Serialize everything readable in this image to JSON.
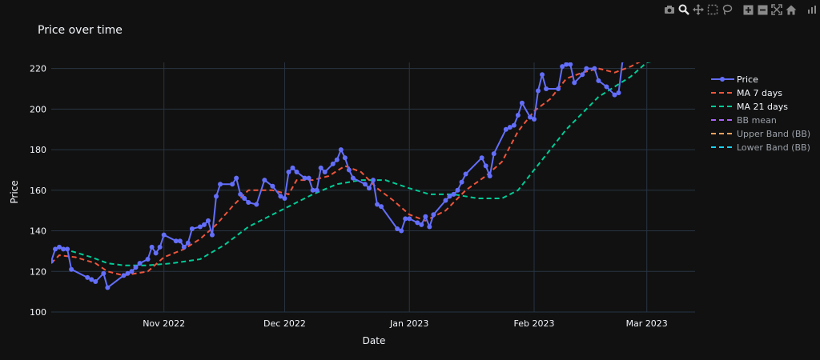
{
  "chart_data": {
    "type": "line",
    "title": "Price over time",
    "xlabel": "Date",
    "ylabel": "Price",
    "x_range": [
      "2022-10-04",
      "2023-03-13"
    ],
    "ylim": [
      100,
      223
    ],
    "x_ticks": [
      {
        "date": "2022-11-01",
        "label": "Nov 2022"
      },
      {
        "date": "2022-12-01",
        "label": "Dec 2022"
      },
      {
        "date": "2023-01-01",
        "label": "Jan 2023"
      },
      {
        "date": "2023-02-01",
        "label": "Feb 2023"
      },
      {
        "date": "2023-03-01",
        "label": "Mar 2023"
      }
    ],
    "y_ticks": [
      100,
      120,
      140,
      160,
      180,
      200,
      220
    ],
    "grid": true,
    "legend_position": "right",
    "background": "#111111",
    "series": [
      {
        "name": "Price",
        "color": "#636efa",
        "mode": "lines+markers",
        "dash": "solid",
        "points": [
          [
            "2022-10-04",
            125
          ],
          [
            "2022-10-05",
            131
          ],
          [
            "2022-10-06",
            132
          ],
          [
            "2022-10-07",
            131
          ],
          [
            "2022-10-08",
            131
          ],
          [
            "2022-10-09",
            121
          ],
          [
            "2022-10-13",
            117
          ],
          [
            "2022-10-14",
            116
          ],
          [
            "2022-10-15",
            115
          ],
          [
            "2022-10-17",
            119
          ],
          [
            "2022-10-18",
            112
          ],
          [
            "2022-10-22",
            118
          ],
          [
            "2022-10-23",
            119
          ],
          [
            "2022-10-24",
            120
          ],
          [
            "2022-10-25",
            122
          ],
          [
            "2022-10-26",
            124
          ],
          [
            "2022-10-28",
            126
          ],
          [
            "2022-10-29",
            132
          ],
          [
            "2022-10-30",
            129
          ],
          [
            "2022-10-31",
            132
          ],
          [
            "2022-11-01",
            138
          ],
          [
            "2022-11-04",
            135
          ],
          [
            "2022-11-05",
            135
          ],
          [
            "2022-11-06",
            132
          ],
          [
            "2022-11-07",
            134
          ],
          [
            "2022-11-08",
            141
          ],
          [
            "2022-11-10",
            142
          ],
          [
            "2022-11-11",
            143
          ],
          [
            "2022-11-12",
            145
          ],
          [
            "2022-11-13",
            138
          ],
          [
            "2022-11-14",
            157
          ],
          [
            "2022-11-15",
            163
          ],
          [
            "2022-11-18",
            163
          ],
          [
            "2022-11-19",
            166
          ],
          [
            "2022-11-20",
            158
          ],
          [
            "2022-11-21",
            156
          ],
          [
            "2022-11-22",
            154
          ],
          [
            "2022-11-24",
            153
          ],
          [
            "2022-11-26",
            165
          ],
          [
            "2022-11-28",
            162
          ],
          [
            "2022-11-30",
            157
          ],
          [
            "2022-12-01",
            156
          ],
          [
            "2022-12-02",
            169
          ],
          [
            "2022-12-03",
            171
          ],
          [
            "2022-12-04",
            169
          ],
          [
            "2022-12-06",
            166
          ],
          [
            "2022-12-07",
            166
          ],
          [
            "2022-12-08",
            160
          ],
          [
            "2022-12-09",
            160
          ],
          [
            "2022-12-10",
            171
          ],
          [
            "2022-12-11",
            169
          ],
          [
            "2022-12-13",
            173
          ],
          [
            "2022-12-14",
            175
          ],
          [
            "2022-12-15",
            180
          ],
          [
            "2022-12-16",
            176
          ],
          [
            "2022-12-17",
            170
          ],
          [
            "2022-12-18",
            166
          ],
          [
            "2022-12-21",
            163
          ],
          [
            "2022-12-22",
            161
          ],
          [
            "2022-12-23",
            165
          ],
          [
            "2022-12-24",
            153
          ],
          [
            "2022-12-25",
            152
          ],
          [
            "2022-12-29",
            141
          ],
          [
            "2022-12-30",
            140
          ],
          [
            "2022-12-31",
            146
          ],
          [
            "2023-01-01",
            146
          ],
          [
            "2023-01-03",
            144
          ],
          [
            "2023-01-04",
            143
          ],
          [
            "2023-01-05",
            147
          ],
          [
            "2023-01-06",
            142
          ],
          [
            "2023-01-07",
            148
          ],
          [
            "2023-01-10",
            155
          ],
          [
            "2023-01-11",
            157
          ],
          [
            "2023-01-12",
            158
          ],
          [
            "2023-01-13",
            160
          ],
          [
            "2023-01-14",
            164
          ],
          [
            "2023-01-15",
            168
          ],
          [
            "2023-01-19",
            176
          ],
          [
            "2023-01-20",
            172
          ],
          [
            "2023-01-21",
            167
          ],
          [
            "2023-01-22",
            178
          ],
          [
            "2023-01-25",
            190
          ],
          [
            "2023-01-26",
            191
          ],
          [
            "2023-01-27",
            192
          ],
          [
            "2023-01-28",
            197
          ],
          [
            "2023-01-29",
            203
          ],
          [
            "2023-01-31",
            196
          ],
          [
            "2023-02-01",
            195
          ],
          [
            "2023-02-02",
            209
          ],
          [
            "2023-02-03",
            217
          ],
          [
            "2023-02-04",
            210
          ],
          [
            "2023-02-07",
            210
          ],
          [
            "2023-02-08",
            221
          ],
          [
            "2023-02-09",
            222
          ],
          [
            "2023-02-10",
            222
          ],
          [
            "2023-02-11",
            213
          ],
          [
            "2023-02-13",
            217
          ],
          [
            "2023-02-14",
            220
          ],
          [
            "2023-02-16",
            220
          ],
          [
            "2023-02-17",
            214
          ],
          [
            "2023-02-19",
            211
          ],
          [
            "2023-02-21",
            207
          ],
          [
            "2023-02-22",
            208
          ],
          [
            "2023-02-23",
            224
          ]
        ]
      },
      {
        "name": "MA 7 days",
        "color": "#ef553b",
        "mode": "lines",
        "dash": "dash",
        "points": [
          [
            "2022-10-04",
            124
          ],
          [
            "2022-10-06",
            128
          ],
          [
            "2022-10-10",
            127
          ],
          [
            "2022-10-15",
            124
          ],
          [
            "2022-10-18",
            120
          ],
          [
            "2022-10-22",
            118
          ],
          [
            "2022-10-28",
            120
          ],
          [
            "2022-11-01",
            127
          ],
          [
            "2022-11-06",
            131
          ],
          [
            "2022-11-10",
            136
          ],
          [
            "2022-11-14",
            143
          ],
          [
            "2022-11-18",
            152
          ],
          [
            "2022-11-22",
            160
          ],
          [
            "2022-11-28",
            160
          ],
          [
            "2022-12-02",
            158
          ],
          [
            "2022-12-04",
            165
          ],
          [
            "2022-12-08",
            165
          ],
          [
            "2022-12-12",
            167
          ],
          [
            "2022-12-16",
            172
          ],
          [
            "2022-12-20",
            169
          ],
          [
            "2022-12-24",
            161
          ],
          [
            "2022-12-28",
            155
          ],
          [
            "2023-01-01",
            148
          ],
          [
            "2023-01-05",
            145
          ],
          [
            "2023-01-10",
            150
          ],
          [
            "2023-01-15",
            160
          ],
          [
            "2023-01-20",
            167
          ],
          [
            "2023-01-24",
            174
          ],
          [
            "2023-01-28",
            189
          ],
          [
            "2023-02-01",
            199
          ],
          [
            "2023-02-05",
            205
          ],
          [
            "2023-02-09",
            215
          ],
          [
            "2023-02-13",
            218
          ],
          [
            "2023-02-17",
            220
          ],
          [
            "2023-02-21",
            218
          ],
          [
            "2023-02-25",
            221
          ],
          [
            "2023-03-01",
            225
          ]
        ]
      },
      {
        "name": "MA 21 days",
        "color": "#00cc96",
        "mode": "lines",
        "dash": "dash",
        "points": [
          [
            "2022-10-09",
            130
          ],
          [
            "2022-10-14",
            127
          ],
          [
            "2022-10-18",
            124
          ],
          [
            "2022-10-22",
            123
          ],
          [
            "2022-10-28",
            123
          ],
          [
            "2022-11-03",
            124
          ],
          [
            "2022-11-10",
            126
          ],
          [
            "2022-11-16",
            133
          ],
          [
            "2022-11-22",
            142
          ],
          [
            "2022-11-28",
            148
          ],
          [
            "2022-12-03",
            153
          ],
          [
            "2022-12-08",
            158
          ],
          [
            "2022-12-14",
            163
          ],
          [
            "2022-12-20",
            165
          ],
          [
            "2022-12-26",
            165
          ],
          [
            "2023-01-01",
            161
          ],
          [
            "2023-01-06",
            158
          ],
          [
            "2023-01-12",
            158
          ],
          [
            "2023-01-18",
            156
          ],
          [
            "2023-01-24",
            156
          ],
          [
            "2023-01-28",
            160
          ],
          [
            "2023-02-01",
            170
          ],
          [
            "2023-02-05",
            180
          ],
          [
            "2023-02-09",
            190
          ],
          [
            "2023-02-13",
            198
          ],
          [
            "2023-02-17",
            206
          ],
          [
            "2023-02-21",
            211
          ],
          [
            "2023-02-25",
            216
          ],
          [
            "2023-03-01",
            223
          ],
          [
            "2023-03-04",
            224
          ]
        ]
      },
      {
        "name": "BB mean",
        "color": "#ab63fa",
        "mode": "lines",
        "dash": "dash",
        "points": []
      },
      {
        "name": "Upper Band (BB)",
        "color": "#ffa15a",
        "mode": "lines",
        "dash": "dash",
        "points": []
      },
      {
        "name": "Lower Band (BB)",
        "color": "#19d3f3",
        "mode": "lines",
        "dash": "dash",
        "points": []
      }
    ]
  },
  "modebar": {
    "buttons": [
      {
        "id": "download",
        "icon": "camera-icon",
        "label": "Download plot as a png"
      },
      {
        "id": "zoom",
        "icon": "zoom-icon",
        "label": "Zoom",
        "active": true
      },
      {
        "id": "pan",
        "icon": "pan-icon",
        "label": "Pan"
      },
      {
        "id": "select",
        "icon": "box-select-icon",
        "label": "Box Select"
      },
      {
        "id": "lasso",
        "icon": "lasso-icon",
        "label": "Lasso Select"
      },
      {
        "id": "zoomin",
        "icon": "zoom-in-icon",
        "label": "Zoom in"
      },
      {
        "id": "zoomout",
        "icon": "zoom-out-icon",
        "label": "Zoom out"
      },
      {
        "id": "autoscale",
        "icon": "autoscale-icon",
        "label": "Autoscale"
      },
      {
        "id": "reset",
        "icon": "home-icon",
        "label": "Reset axes"
      },
      {
        "id": "logo",
        "icon": "plotly-logo-icon",
        "label": "Produced with Plotly"
      }
    ]
  }
}
